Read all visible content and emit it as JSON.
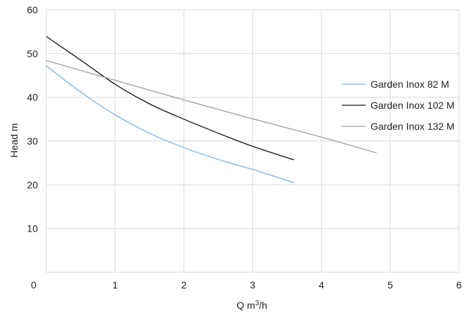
{
  "chart_data": {
    "type": "line",
    "xlabel": "Q m³/h",
    "ylabel": "Head m",
    "xlim": [
      0,
      6
    ],
    "ylim": [
      0,
      60
    ],
    "xticks": [
      "0",
      "1",
      "2",
      "3",
      "4",
      "5",
      "6"
    ],
    "yticks": [
      "10",
      "20",
      "30",
      "40",
      "50",
      "60"
    ],
    "grid": "vertical and horizontal",
    "legend_position": "right",
    "series": [
      {
        "name": "Garden Inox 82 M",
        "color": "#7fb2dd",
        "x": [
          0,
          0.5,
          1,
          1.5,
          2,
          2.5,
          3,
          3.6
        ],
        "y": [
          47.2,
          41.2,
          36.0,
          31.8,
          28.5,
          25.8,
          23.5,
          20.5
        ]
      },
      {
        "name": "Garden Inox 102 M",
        "color": "#111111",
        "x": [
          0,
          0.5,
          1,
          1.5,
          2,
          2.5,
          3,
          3.6
        ],
        "y": [
          53.9,
          48.5,
          43.0,
          38.5,
          35.0,
          31.8,
          28.8,
          25.7
        ]
      },
      {
        "name": "Garden Inox 132 M",
        "color": "#9e9e9e",
        "x": [
          0,
          1,
          2,
          3,
          4,
          4.8
        ],
        "y": [
          48.4,
          43.9,
          39.4,
          35.1,
          30.9,
          27.3
        ]
      }
    ]
  }
}
